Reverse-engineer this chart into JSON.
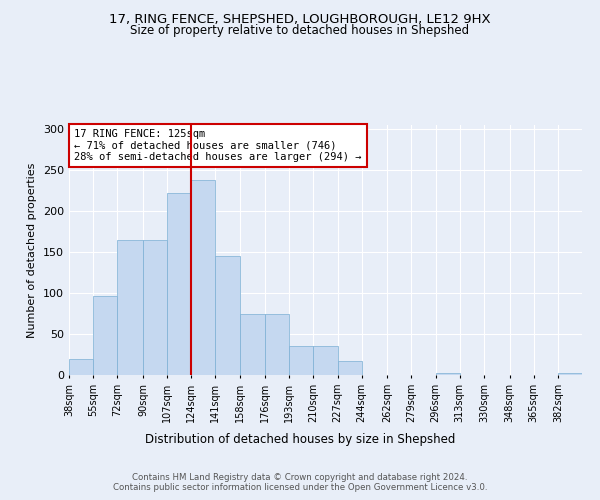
{
  "title_line1": "17, RING FENCE, SHEPSHED, LOUGHBOROUGH, LE12 9HX",
  "title_line2": "Size of property relative to detached houses in Shepshed",
  "xlabel": "Distribution of detached houses by size in Shepshed",
  "ylabel": "Number of detached properties",
  "footer_line1": "Contains HM Land Registry data © Crown copyright and database right 2024.",
  "footer_line2": "Contains public sector information licensed under the Open Government Licence v3.0.",
  "annotation_line1": "17 RING FENCE: 125sqm",
  "annotation_line2": "← 71% of detached houses are smaller (746)",
  "annotation_line3": "28% of semi-detached houses are larger (294) →",
  "bin_labels": [
    "38sqm",
    "55sqm",
    "72sqm",
    "90sqm",
    "107sqm",
    "124sqm",
    "141sqm",
    "158sqm",
    "176sqm",
    "193sqm",
    "210sqm",
    "227sqm",
    "244sqm",
    "262sqm",
    "279sqm",
    "296sqm",
    "313sqm",
    "330sqm",
    "348sqm",
    "365sqm",
    "382sqm"
  ],
  "bin_edges": [
    38,
    55,
    72,
    90,
    107,
    124,
    141,
    158,
    176,
    193,
    210,
    227,
    244,
    262,
    279,
    296,
    313,
    330,
    348,
    365,
    382,
    399
  ],
  "bar_heights": [
    20,
    96,
    165,
    165,
    222,
    238,
    145,
    75,
    75,
    35,
    35,
    17,
    0,
    0,
    0,
    2,
    0,
    0,
    0,
    0,
    2
  ],
  "bar_color": "#c5d8f0",
  "bar_edge_color": "#7bafd4",
  "vline_color": "#cc0000",
  "vline_x": 124,
  "box_edge_color": "#cc0000",
  "background_color": "#e8eef8",
  "ylim": [
    0,
    305
  ],
  "yticks": [
    0,
    50,
    100,
    150,
    200,
    250,
    300
  ]
}
